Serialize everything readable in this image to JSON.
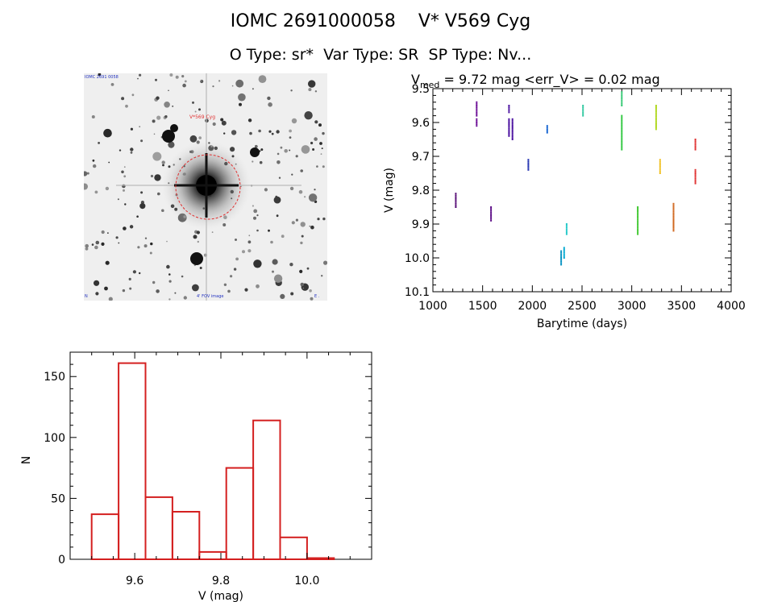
{
  "header": {
    "title": "IOMC 2691000058    V* V569 Cyg",
    "subtitle": "O Type: sr*  Var Type: SR  SP Type: Nv..."
  },
  "image_panel": {
    "target_label": "V*569 Cyg",
    "corner_top_left": "IOMC 2691 0058",
    "corner_bottom_left": "N",
    "corner_bottom_mid": "4' FOV image",
    "corner_bottom_right": "E ."
  },
  "chart_data": [
    {
      "type": "scatter",
      "title_prefix": "V",
      "title_sub": "med",
      "title_rest": " = 9.72 mag <err_V> = 0.02 mag",
      "xlabel": "Barytime (days)",
      "ylabel": "V (mag)",
      "xlim": [
        1000,
        4000
      ],
      "ylim": [
        10.1,
        9.5
      ],
      "y_inverted": true,
      "xticks": [
        1000,
        1500,
        2000,
        2500,
        3000,
        3500,
        4000
      ],
      "yticks": [
        "9.5",
        "9.6",
        "9.7",
        "9.8",
        "9.9",
        "10.0",
        "10.1"
      ],
      "series": [
        {
          "x": 1230,
          "y_min": 9.81,
          "y_max": 9.85,
          "color": "#550a75"
        },
        {
          "x": 1440,
          "y_min": 9.54,
          "y_max": 9.58,
          "color": "#6a0a95"
        },
        {
          "x": 1440,
          "y_min": 9.59,
          "y_max": 9.61,
          "color": "#6a0a95"
        },
        {
          "x": 1585,
          "y_min": 9.85,
          "y_max": 9.89,
          "color": "#5a0a85"
        },
        {
          "x": 1765,
          "y_min": 9.55,
          "y_max": 9.57,
          "color": "#4a10a0"
        },
        {
          "x": 1765,
          "y_min": 9.59,
          "y_max": 9.64,
          "color": "#4a10a0"
        },
        {
          "x": 1800,
          "y_min": 9.59,
          "y_max": 9.65,
          "color": "#4a10a0"
        },
        {
          "x": 1960,
          "y_min": 9.71,
          "y_max": 9.74,
          "color": "#2030b0"
        },
        {
          "x": 2150,
          "y_min": 9.61,
          "y_max": 9.63,
          "color": "#1060d0"
        },
        {
          "x": 2290,
          "y_min": 9.98,
          "y_max": 10.02,
          "color": "#0090c0"
        },
        {
          "x": 2320,
          "y_min": 9.97,
          "y_max": 10.0,
          "color": "#00a8d0"
        },
        {
          "x": 2345,
          "y_min": 9.9,
          "y_max": 9.93,
          "color": "#20c8c8"
        },
        {
          "x": 2510,
          "y_min": 9.55,
          "y_max": 9.58,
          "color": "#30c8a0"
        },
        {
          "x": 2900,
          "y_min": 9.51,
          "y_max": 9.55,
          "color": "#30c870"
        },
        {
          "x": 2900,
          "y_min": 9.58,
          "y_max": 9.68,
          "color": "#30c840"
        },
        {
          "x": 3060,
          "y_min": 9.85,
          "y_max": 9.93,
          "color": "#40c830"
        },
        {
          "x": 3245,
          "y_min": 9.55,
          "y_max": 9.62,
          "color": "#b0d820"
        },
        {
          "x": 3285,
          "y_min": 9.71,
          "y_max": 9.75,
          "color": "#f0c020"
        },
        {
          "x": 3420,
          "y_min": 9.84,
          "y_max": 9.92,
          "color": "#d06820"
        },
        {
          "x": 3640,
          "y_min": 9.65,
          "y_max": 9.68,
          "color": "#e03030"
        },
        {
          "x": 3640,
          "y_min": 9.74,
          "y_max": 9.78,
          "color": "#e03030"
        }
      ]
    },
    {
      "type": "bar",
      "xlabel": "V (mag)",
      "ylabel": "N",
      "xlim": [
        9.45,
        10.15
      ],
      "ylim": [
        0,
        170
      ],
      "xticks": [
        "9.6",
        "9.8",
        "10.0"
      ],
      "yticks": [
        "0",
        "50",
        "100",
        "150"
      ],
      "bin_width": 0.0625,
      "bin_starts": [
        9.5,
        9.5625,
        9.625,
        9.6875,
        9.75,
        9.8125,
        9.875,
        9.9375,
        10.0
      ],
      "values": [
        37,
        161,
        51,
        39,
        6,
        75,
        114,
        18,
        1
      ],
      "color": "#d42020"
    }
  ],
  "colors": {
    "axes": "#000000",
    "histogram": "#d42020",
    "target_circle": "#e03030"
  }
}
